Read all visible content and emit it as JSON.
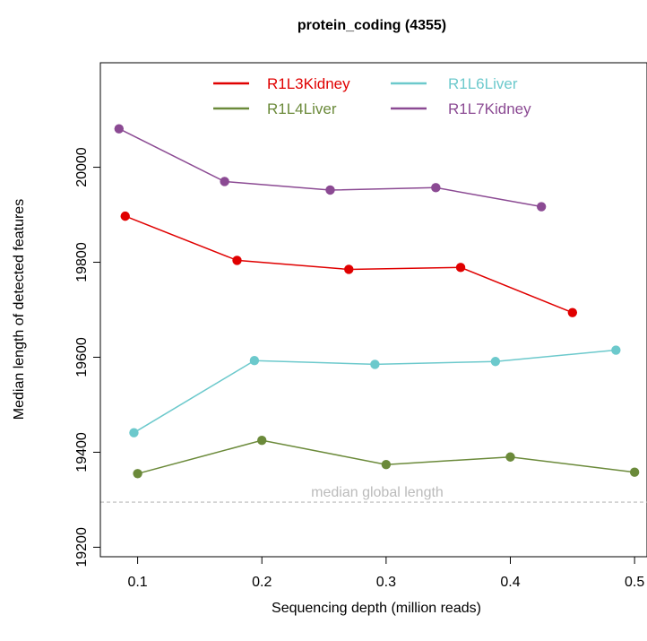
{
  "chart_data": {
    "type": "line",
    "title": "protein_coding (4355)",
    "xlabel": "Sequencing depth (million reads)",
    "ylabel": "Median length of detected features",
    "xlim": [
      0.07,
      0.51
    ],
    "ylim": [
      19180,
      20220
    ],
    "xticks": [
      0.1,
      0.2,
      0.3,
      0.4,
      0.5
    ],
    "xtick_labels": [
      "0.1",
      "0.2",
      "0.3",
      "0.4",
      "0.5"
    ],
    "yticks": [
      19200,
      19400,
      19600,
      19800,
      20000
    ],
    "ytick_labels": [
      "19200",
      "19400",
      "19600",
      "19800",
      "20000"
    ],
    "grid": false,
    "legend_position": "top-center",
    "series": [
      {
        "name": "R1L3Kidney",
        "color": "#e00000",
        "x": [
          0.09,
          0.18,
          0.27,
          0.36,
          0.45
        ],
        "y": [
          19897,
          19804,
          19785,
          19789,
          19694
        ]
      },
      {
        "name": "R1L4Liver",
        "color": "#6b8a3a",
        "x": [
          0.1,
          0.2,
          0.3,
          0.4,
          0.5
        ],
        "y": [
          19355,
          19425,
          19374,
          19390,
          19358
        ]
      },
      {
        "name": "R1L6Liver",
        "color": "#6cc9cc",
        "x": [
          0.097,
          0.194,
          0.291,
          0.388,
          0.485
        ],
        "y": [
          19441,
          19593,
          19585,
          19591,
          19615
        ]
      },
      {
        "name": "R1L7Kidney",
        "color": "#8b4a93",
        "x": [
          0.085,
          0.17,
          0.255,
          0.34,
          0.425
        ],
        "y": [
          20081,
          19970,
          19952,
          19957,
          19917
        ]
      }
    ],
    "reference_line": {
      "y": 19295,
      "label": "median global length",
      "color": "#bbbbbb"
    }
  }
}
